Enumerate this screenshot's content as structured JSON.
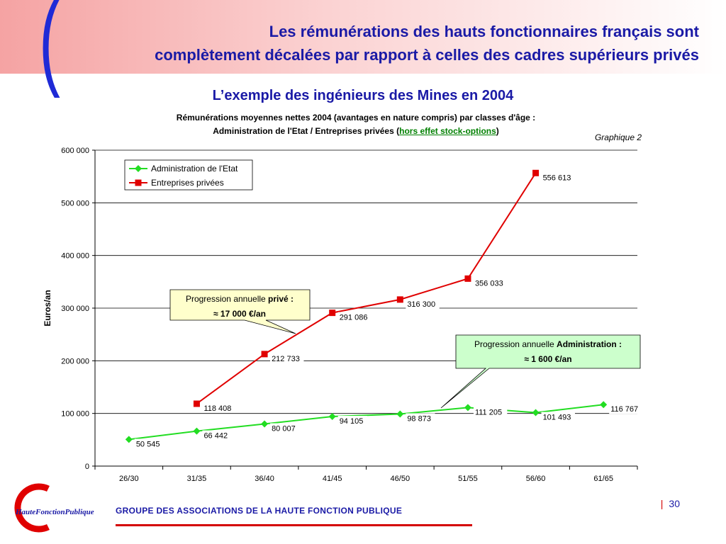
{
  "header": {
    "title_line1": "Les rémunérations des hauts fonctionnaires français sont",
    "title_line2": "complètement décalées par rapport à celles des cadres supérieurs privés",
    "bracket": "("
  },
  "chart_heading": "L’exemple des ingénieurs des Mines en 2004",
  "subtitle": {
    "line1": "Rémunérations moyennes nettes 2004  (avantages en nature compris) par classes d'âge :",
    "line2_prefix": "Administration de l'Etat   /   Entreprises privées (",
    "line2_link": "hors effet stock-options",
    "line2_suffix": ")"
  },
  "graph_label": "Graphique 2",
  "chart_data": {
    "type": "line",
    "ylabel": "Euros/an",
    "ylim": [
      0,
      600000
    ],
    "yticks": [
      0,
      100000,
      200000,
      300000,
      400000,
      500000,
      600000
    ],
    "ytick_labels": [
      "0",
      "100 000",
      "200 000",
      "300 000",
      "400 000",
      "500 000",
      "600 000"
    ],
    "categories": [
      "26/30",
      "31/35",
      "36/40",
      "41/45",
      "46/50",
      "51/55",
      "56/60",
      "61/65"
    ],
    "grid": true,
    "legend_position": "top-left",
    "series": [
      {
        "name": "Administration de l'Etat",
        "color": "#22dd22",
        "marker": "diamond",
        "values": [
          50545,
          66442,
          80007,
          94105,
          98873,
          111205,
          101493,
          116767
        ],
        "labels": [
          "50 545",
          "66 442",
          "80 007",
          "94 105",
          "98 873",
          "111 205",
          "101 493",
          "116 767"
        ]
      },
      {
        "name": "Entreprises privées",
        "color": "#e00000",
        "marker": "square",
        "values": [
          null,
          118408,
          212733,
          291086,
          316300,
          356033,
          556613,
          null
        ],
        "labels": [
          "",
          "118 408",
          "212 733",
          "291 086",
          "316 300",
          "356 033",
          "556 613",
          ""
        ]
      }
    ],
    "annotations": [
      {
        "line1": "Progression annuelle ",
        "line1_bold": "privé :",
        "line2": "≈  17 000 €/an",
        "color": "#ffffcc"
      },
      {
        "line1": "Progression annuelle ",
        "line1_bold": "Administration :",
        "line2": "≈  1 600 €/an",
        "color": "#ccffcc"
      }
    ]
  },
  "footer": {
    "logo_text": "HauteFonctionPublique",
    "text": "GROUPE DES ASSOCIATIONS DE LA HAUTE FONCTION PUBLIQUE",
    "page_bar": "|",
    "page_number": "30"
  }
}
